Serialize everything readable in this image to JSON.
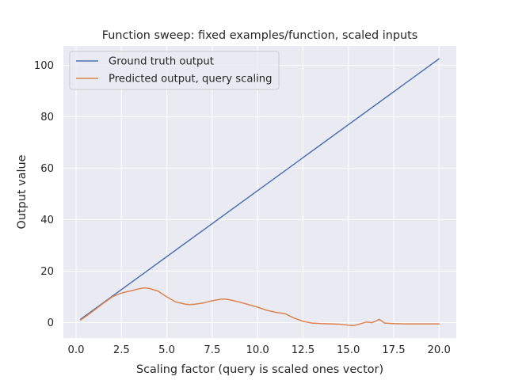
{
  "chart_data": {
    "type": "line",
    "title": "Function sweep: fixed examples/function, scaled inputs",
    "xlabel": "Scaling factor (query is scaled ones vector)",
    "ylabel": "Output value",
    "xlim": [
      -0.7,
      20.95
    ],
    "ylim": [
      -6,
      107.5
    ],
    "xticks": [
      0.0,
      2.5,
      5.0,
      7.5,
      10.0,
      12.5,
      15.0,
      17.5,
      20.0
    ],
    "xtick_labels": [
      "0.0",
      "2.5",
      "5.0",
      "7.5",
      "10.0",
      "12.5",
      "15.0",
      "17.5",
      "20.0"
    ],
    "yticks": [
      0,
      20,
      40,
      60,
      80,
      100
    ],
    "ytick_labels": [
      "0",
      "20",
      "40",
      "60",
      "80",
      "100"
    ],
    "grid": true,
    "legend_position": "top-left",
    "series": [
      {
        "name": "Ground truth output",
        "color": "#4c72b0",
        "x": [
          0.25,
          20.0
        ],
        "y": [
          1.3,
          102.5
        ]
      },
      {
        "name": "Predicted output, query scaling",
        "color": "#dd8452",
        "x": [
          0.25,
          0.5,
          1.0,
          1.5,
          2.0,
          2.5,
          3.0,
          3.5,
          3.75,
          4.0,
          4.5,
          5.0,
          5.5,
          6.0,
          6.25,
          6.5,
          7.0,
          7.5,
          8.0,
          8.25,
          8.5,
          9.0,
          9.5,
          10.0,
          10.5,
          11.0,
          11.5,
          12.0,
          12.5,
          13.0,
          13.5,
          14.0,
          14.5,
          15.0,
          15.25,
          15.5,
          16.0,
          16.3,
          16.5,
          16.7,
          17.0,
          17.5,
          18.0,
          18.5,
          19.0,
          19.5,
          20.0
        ],
        "y": [
          1.0,
          2.2,
          4.8,
          7.5,
          10.0,
          11.5,
          12.3,
          13.2,
          13.5,
          13.3,
          12.3,
          10.0,
          8.0,
          7.2,
          7.0,
          7.1,
          7.6,
          8.5,
          9.1,
          9.1,
          8.8,
          8.0,
          7.0,
          6.0,
          4.8,
          4.0,
          3.5,
          1.8,
          0.5,
          -0.2,
          -0.4,
          -0.5,
          -0.6,
          -1.0,
          -1.2,
          -0.8,
          0.2,
          0.0,
          0.5,
          1.3,
          -0.2,
          -0.4,
          -0.5,
          -0.5,
          -0.5,
          -0.5,
          -0.5
        ]
      }
    ]
  }
}
